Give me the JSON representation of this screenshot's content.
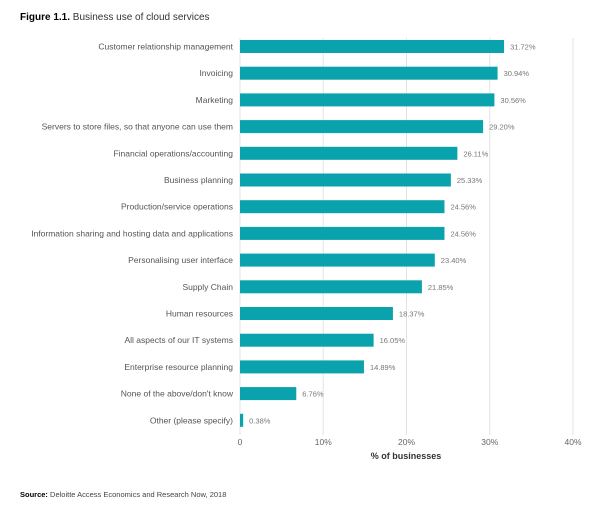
{
  "figure": {
    "label": "Figure 1.1.",
    "title": "Business use of cloud services"
  },
  "source": {
    "label": "Source:",
    "text": "Deloitte Access Economics and Research Now, 2018"
  },
  "colors": {
    "bar": "#0aa2ad",
    "grid": "#e3e3e3",
    "text": "#555555"
  },
  "chart_data": {
    "type": "bar",
    "orientation": "horizontal",
    "categories": [
      "Customer relationship management",
      "Invoicing",
      "Marketing",
      "Servers to store files, so that anyone can use them",
      "Financial operations/accounting",
      "Business planning",
      "Production/service operations",
      "Information sharing and hosting data and applications",
      "Personalising user interface",
      "Supply Chain",
      "Human resources",
      "All aspects of our IT systems",
      "Enterprise resource planning",
      "None of the above/don't know",
      "Other (please specify)"
    ],
    "values": [
      31.72,
      30.94,
      30.56,
      29.2,
      26.11,
      25.33,
      24.56,
      24.56,
      23.4,
      21.85,
      18.37,
      16.05,
      14.89,
      6.76,
      0.38
    ],
    "value_labels": [
      "31.72%",
      "30.94%",
      "30.56%",
      "29.20%",
      "26.11%",
      "25.33%",
      "24.56%",
      "24.56%",
      "23.40%",
      "21.85%",
      "18.37%",
      "16.05%",
      "14.89%",
      "6.76%",
      "0.38%"
    ],
    "xlabel": "% of businesses",
    "xlim": [
      0,
      40
    ],
    "xticks": [
      0,
      10,
      20,
      30,
      40
    ],
    "xtick_labels": [
      "0",
      "10%",
      "20%",
      "30%",
      "40%"
    ],
    "grid": true
  }
}
